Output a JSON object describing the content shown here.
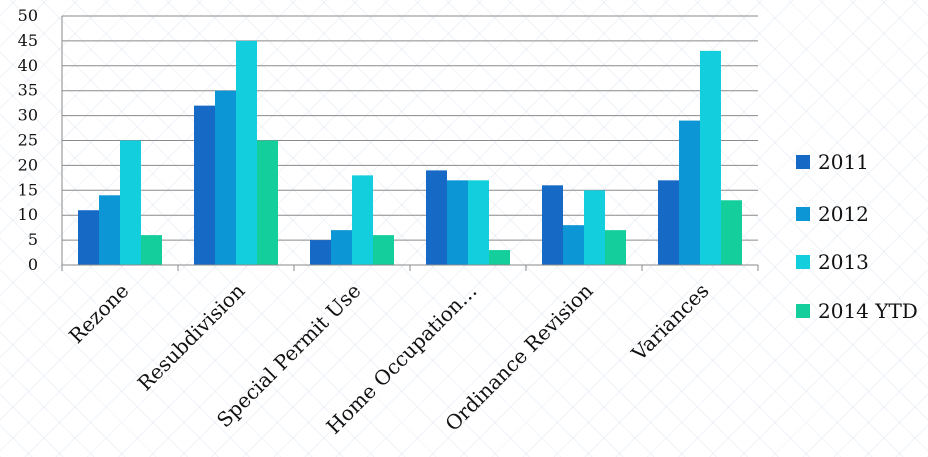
{
  "chart_data": {
    "type": "bar",
    "title": "",
    "xlabel": "",
    "ylabel": "",
    "ylim": [
      0,
      50
    ],
    "yticks": [
      0,
      5,
      10,
      15,
      20,
      25,
      30,
      35,
      40,
      45,
      50
    ],
    "grid": true,
    "legend_position": "right",
    "categories": [
      "Rezone",
      "Resubdivision",
      "Special Permit Use",
      "Home Occupation…",
      "Ordinance Revision",
      "Variances"
    ],
    "series": [
      {
        "name": "2011",
        "color": "#1769C6",
        "values": [
          11,
          32,
          5,
          19,
          16,
          17
        ]
      },
      {
        "name": "2012",
        "color": "#0C96D5",
        "values": [
          14,
          35,
          7,
          17,
          8,
          29
        ]
      },
      {
        "name": "2013",
        "color": "#13CFDD",
        "values": [
          25,
          45,
          18,
          17,
          15,
          43
        ]
      },
      {
        "name": "2014 YTD",
        "color": "#14CF9B",
        "values": [
          6,
          25,
          6,
          3,
          7,
          13
        ]
      }
    ]
  }
}
